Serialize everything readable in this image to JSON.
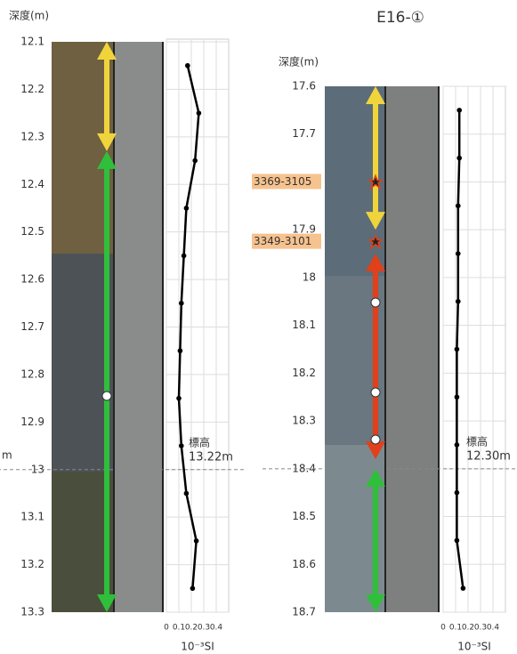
{
  "title": "E16-①",
  "cut_label": "m",
  "chart_data": [
    {
      "type": "line",
      "y_label": "深度(m)",
      "x_label": "10⁻³SI",
      "ylim": [
        12.1,
        13.3
      ],
      "yticks": [
        12.1,
        12.2,
        12.3,
        12.4,
        12.5,
        12.6,
        12.7,
        12.8,
        12.9,
        13.0,
        13.1,
        13.2,
        13.3
      ],
      "xlim": [
        0,
        0.5
      ],
      "xticks": [
        0,
        0.1,
        0.2,
        0.3,
        0.4
      ],
      "grid": true,
      "y": [
        12.15,
        12.25,
        12.35,
        12.45,
        12.55,
        12.65,
        12.75,
        12.85,
        12.95,
        13.05,
        13.15,
        13.25
      ],
      "series": [
        {
          "color": "#000000",
          "values": [
            0.17,
            0.26,
            0.23,
            0.16,
            0.14,
            0.12,
            0.11,
            0.1,
            0.12,
            0.16,
            0.24,
            0.21
          ]
        }
      ],
      "elevation_label": "標高",
      "elevation_value": "13.22m",
      "reference_depth": 13.0,
      "intervals": [
        {
          "from": 12.1,
          "to": 12.33,
          "color": "#f0d43c"
        },
        {
          "from": 12.33,
          "to": 13.3,
          "color": "#2fbf3a"
        }
      ],
      "samples": []
    },
    {
      "type": "line",
      "y_label": "深度(m)",
      "x_label": "10⁻³SI",
      "ylim": [
        17.6,
        18.7
      ],
      "yticks": [
        17.6,
        17.7,
        17.8,
        17.9,
        18.0,
        18.1,
        18.2,
        18.3,
        18.4,
        18.5,
        18.6,
        18.7
      ],
      "xlim": [
        0,
        0.5
      ],
      "xticks": [
        0,
        0.1,
        0.2,
        0.3,
        0.4
      ],
      "grid": true,
      "y": [
        17.65,
        17.75,
        17.85,
        17.95,
        18.05,
        18.15,
        18.25,
        18.35,
        18.45,
        18.55,
        18.65
      ],
      "series": [
        {
          "color": "#000000",
          "values": [
            0.13,
            0.13,
            0.12,
            0.12,
            0.12,
            0.11,
            0.11,
            0.11,
            0.11,
            0.11,
            0.16
          ]
        }
      ],
      "elevation_label": "標高",
      "elevation_value": "12.30m",
      "reference_depth": 18.4,
      "intervals": [
        {
          "from": 17.6,
          "to": 17.9,
          "color": "#f0d43c"
        },
        {
          "from": 17.95,
          "to": 18.38,
          "color": "#e0401a"
        },
        {
          "from": 18.4,
          "to": 18.7,
          "color": "#2fbf3a"
        }
      ],
      "samples": [
        {
          "label": "3369-3105",
          "depth": 17.8
        },
        {
          "label": "3349-3101",
          "depth": 17.925
        }
      ]
    }
  ]
}
